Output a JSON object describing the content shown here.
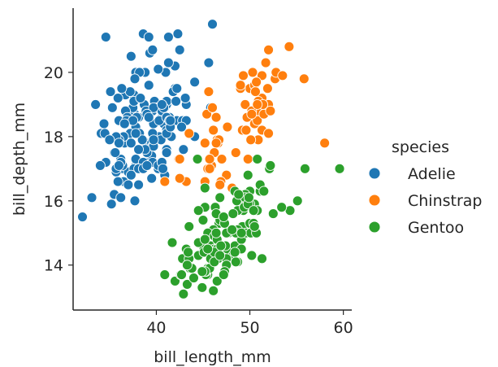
{
  "chart_data": {
    "type": "scatter",
    "xlabel": "bill_length_mm",
    "ylabel": "bill_depth_mm",
    "xlim": [
      31.1,
      60.9
    ],
    "ylim": [
      12.6,
      22.0
    ],
    "xticks": [
      40,
      50,
      60
    ],
    "yticks": [
      14,
      16,
      18,
      20
    ],
    "grid": false,
    "legend": {
      "title": "species",
      "placement": "right",
      "entries": [
        "Adelie",
        "Chinstrap",
        "Gentoo"
      ]
    },
    "series": [
      {
        "name": "Adelie",
        "color": "#1f77b4",
        "x": [
          39.1,
          39.5,
          40.3,
          36.7,
          39.3,
          38.9,
          39.2,
          34.1,
          42.0,
          37.8,
          37.8,
          41.1,
          38.6,
          34.6,
          36.6,
          38.7,
          42.5,
          34.4,
          46.0,
          37.8,
          37.7,
          35.9,
          38.2,
          38.8,
          35.3,
          40.6,
          40.5,
          37.9,
          40.5,
          39.5,
          37.2,
          39.5,
          40.9,
          36.4,
          39.2,
          38.8,
          42.2,
          37.6,
          39.8,
          36.5,
          40.8,
          36.0,
          44.1,
          37.0,
          39.6,
          41.1,
          37.5,
          36.0,
          42.3,
          39.6,
          40.1,
          35.0,
          42.0,
          34.5,
          41.4,
          39.0,
          40.6,
          36.5,
          37.6,
          35.7,
          41.3,
          37.6,
          41.1,
          36.4,
          41.6,
          35.5,
          41.1,
          35.9,
          41.8,
          33.5,
          39.7,
          39.6,
          45.8,
          35.5,
          42.8,
          40.9,
          37.2,
          36.2,
          42.1,
          34.6,
          42.9,
          36.7,
          35.1,
          37.3,
          41.3,
          36.3,
          36.9,
          38.3,
          38.9,
          35.7,
          41.1,
          34.0,
          39.6,
          36.2,
          40.8,
          38.1,
          40.3,
          33.1,
          43.2,
          35.0,
          41.0,
          37.7,
          37.8,
          37.9,
          39.7,
          38.6,
          38.2,
          38.1,
          43.2,
          38.1,
          45.6,
          39.7,
          42.2,
          39.6,
          42.7,
          38.6,
          37.3,
          35.7,
          41.1,
          36.2,
          37.7,
          40.2,
          41.4,
          35.2,
          40.6,
          38.8,
          41.5,
          39.0,
          44.1,
          38.5,
          43.1,
          36.8,
          37.5,
          38.1,
          41.1,
          35.6,
          40.2,
          37.0,
          39.7,
          40.2,
          40.6,
          32.1,
          40.7,
          37.3,
          39.0,
          39.2,
          36.6,
          36.0,
          37.8,
          36.0,
          41.5
        ],
        "y": [
          18.7,
          17.4,
          18.0,
          19.3,
          20.6,
          17.8,
          19.6,
          18.1,
          20.2,
          17.1,
          17.3,
          17.6,
          21.2,
          21.1,
          17.8,
          19.0,
          20.7,
          18.4,
          21.5,
          18.3,
          18.7,
          19.2,
          18.1,
          17.2,
          18.9,
          18.6,
          17.9,
          18.6,
          18.9,
          16.7,
          18.1,
          17.8,
          18.9,
          17.0,
          21.1,
          20.0,
          18.5,
          19.3,
          19.1,
          18.0,
          18.4,
          18.5,
          19.7,
          16.9,
          18.8,
          19.0,
          18.9,
          17.9,
          21.2,
          17.7,
          18.9,
          17.9,
          19.5,
          18.1,
          18.6,
          17.5,
          18.8,
          16.6,
          19.1,
          16.9,
          21.1,
          17.0,
          18.2,
          17.1,
          18.0,
          16.2,
          19.1,
          16.6,
          19.4,
          19.0,
          18.4,
          17.2,
          18.9,
          17.5,
          18.5,
          16.8,
          19.4,
          16.1,
          19.1,
          17.2,
          17.6,
          18.8,
          19.4,
          17.8,
          20.3,
          19.5,
          18.6,
          19.2,
          18.8,
          18.0,
          18.1,
          17.1,
          18.1,
          17.3,
          18.9,
          18.6,
          18.5,
          16.1,
          18.5,
          17.9,
          20.0,
          16.0,
          20.0,
          18.6,
          18.9,
          17.2,
          20.0,
          17.0,
          19.0,
          16.5,
          20.3,
          17.7,
          19.5,
          20.7,
          18.3,
          17.0,
          20.5,
          17.0,
          18.6,
          17.2,
          19.8,
          17.0,
          18.5,
          15.9,
          19.0,
          17.6,
          18.3,
          17.1,
          18.0,
          17.9,
          19.2,
          18.5,
          18.5,
          17.6,
          17.5,
          17.5,
          20.1,
          16.5,
          17.9,
          17.1,
          17.2,
          15.5,
          17.0,
          16.8,
          18.7,
          18.6,
          18.4,
          17.8,
          18.1,
          17.1,
          18.5
        ]
      },
      {
        "name": "Chinstrap",
        "color": "#ff7f0e",
        "x": [
          46.5,
          50.0,
          51.3,
          45.4,
          52.7,
          45.2,
          46.1,
          51.3,
          46.0,
          51.3,
          46.6,
          51.7,
          47.0,
          52.0,
          45.9,
          50.5,
          50.3,
          58.0,
          46.4,
          49.2,
          42.4,
          48.5,
          43.2,
          50.6,
          46.7,
          52.0,
          50.5,
          49.5,
          46.4,
          52.8,
          40.9,
          54.2,
          42.5,
          51.0,
          49.7,
          47.5,
          47.6,
          52.0,
          46.9,
          53.5,
          49.0,
          46.2,
          50.9,
          45.5,
          50.9,
          50.8,
          50.1,
          49.0,
          51.5,
          49.8,
          48.1,
          51.4,
          45.7,
          50.7,
          42.5,
          52.2,
          45.2,
          49.3,
          50.2,
          45.6,
          51.9,
          46.8,
          45.7,
          55.8,
          43.5,
          49.6,
          50.8,
          50.2
        ],
        "y": [
          17.9,
          19.5,
          19.2,
          18.7,
          19.8,
          17.8,
          18.2,
          18.2,
          18.9,
          19.9,
          17.8,
          20.3,
          17.3,
          18.1,
          17.1,
          19.6,
          20.0,
          17.8,
          18.6,
          18.2,
          17.3,
          17.5,
          16.6,
          19.4,
          17.9,
          19.0,
          18.4,
          19.0,
          17.8,
          20.0,
          16.6,
          20.8,
          16.7,
          18.8,
          18.6,
          16.8,
          18.3,
          20.7,
          16.6,
          19.9,
          19.5,
          17.5,
          19.1,
          17.0,
          17.9,
          18.5,
          17.9,
          19.6,
          18.7,
          17.3,
          16.4,
          19.0,
          17.3,
          19.7,
          17.3,
          18.8,
          16.6,
          19.9,
          18.8,
          19.4,
          19.5,
          16.5,
          17.0,
          19.8,
          18.1,
          18.2,
          19.0,
          18.7
        ]
      },
      {
        "name": "Gentoo",
        "color": "#2ca02c",
        "x": [
          46.1,
          50.0,
          48.7,
          50.0,
          47.6,
          46.5,
          45.4,
          46.7,
          43.3,
          46.8,
          40.9,
          49.0,
          45.5,
          48.4,
          45.8,
          49.3,
          42.0,
          49.2,
          46.2,
          48.7,
          50.2,
          45.1,
          46.5,
          46.3,
          42.9,
          46.1,
          44.5,
          47.8,
          48.2,
          50.0,
          47.3,
          42.8,
          45.1,
          59.6,
          49.1,
          48.4,
          42.6,
          44.4,
          44.0,
          48.7,
          42.7,
          49.6,
          45.3,
          49.6,
          50.5,
          43.6,
          45.5,
          50.5,
          44.9,
          45.2,
          46.6,
          48.5,
          45.1,
          50.1,
          46.5,
          45.0,
          43.8,
          45.5,
          43.2,
          50.4,
          45.3,
          46.2,
          45.7,
          54.3,
          45.8,
          49.8,
          46.2,
          49.5,
          43.5,
          50.7,
          47.7,
          46.4,
          48.2,
          46.5,
          46.4,
          48.6,
          47.5,
          51.1,
          45.2,
          45.2,
          49.1,
          52.5,
          47.4,
          50.0,
          44.9,
          50.8,
          43.4,
          51.3,
          47.5,
          52.1,
          47.5,
          52.2,
          45.5,
          49.5,
          44.5,
          50.8,
          49.4,
          46.9,
          48.4,
          51.1,
          48.5,
          55.9,
          47.2,
          49.1,
          47.3,
          46.8,
          41.7,
          53.4,
          43.3,
          48.1,
          50.5,
          49.8,
          43.5,
          51.5,
          46.2,
          55.1,
          44.5,
          48.8,
          47.2,
          46.8,
          50.4,
          45.2,
          49.9
        ],
        "y": [
          13.2,
          16.3,
          14.1,
          15.2,
          14.5,
          13.5,
          14.6,
          15.3,
          13.4,
          15.4,
          13.7,
          16.1,
          13.7,
          14.6,
          14.6,
          15.7,
          13.5,
          15.2,
          14.5,
          15.1,
          14.3,
          14.5,
          14.5,
          15.8,
          13.1,
          15.1,
          14.3,
          15.0,
          14.3,
          15.3,
          15.3,
          14.2,
          14.5,
          17.0,
          14.8,
          16.3,
          13.7,
          17.3,
          13.6,
          15.7,
          13.7,
          16.0,
          13.7,
          15.0,
          15.9,
          13.9,
          13.9,
          15.9,
          13.3,
          15.8,
          14.2,
          14.1,
          14.4,
          15.0,
          14.4,
          15.4,
          13.9,
          15.0,
          14.5,
          15.3,
          13.8,
          14.9,
          13.9,
          15.7,
          14.2,
          16.8,
          14.4,
          16.2,
          14.2,
          15.0,
          15.0,
          15.6,
          15.6,
          14.8,
          15.0,
          16.0,
          14.2,
          16.3,
          13.8,
          16.4,
          14.5,
          15.6,
          14.6,
          15.9,
          13.8,
          17.3,
          14.4,
          14.2,
          14.0,
          17.0,
          15.0,
          17.1,
          14.5,
          16.1,
          14.7,
          15.7,
          15.8,
          14.6,
          14.4,
          16.5,
          15.0,
          17.0,
          15.5,
          15.0,
          13.8,
          16.1,
          14.7,
          15.8,
          14.0,
          15.1,
          15.2,
          15.9,
          15.2,
          16.3,
          14.1,
          16.0,
          15.7,
          16.2,
          13.7,
          14.3,
          15.7,
          14.8,
          16.1
        ]
      }
    ]
  }
}
